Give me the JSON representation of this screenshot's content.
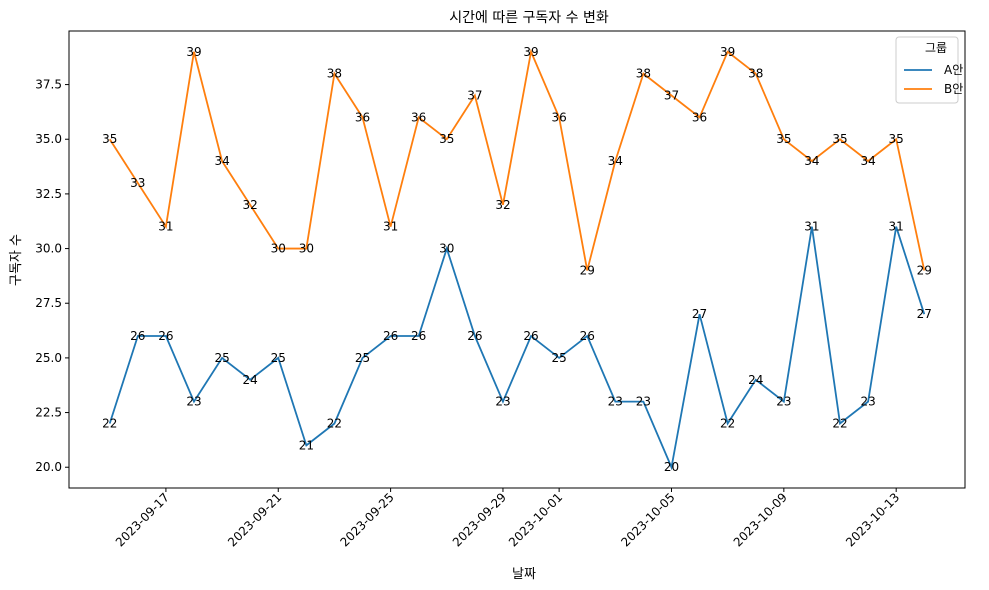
{
  "chart_data": {
    "type": "line",
    "title": "시간에 따른 구독자 수 변화",
    "xlabel": "날짜",
    "ylabel": "구독자 수",
    "x": [
      "2023-09-15",
      "2023-09-16",
      "2023-09-17",
      "2023-09-18",
      "2023-09-19",
      "2023-09-20",
      "2023-09-21",
      "2023-09-22",
      "2023-09-23",
      "2023-09-24",
      "2023-09-25",
      "2023-09-26",
      "2023-09-27",
      "2023-09-28",
      "2023-09-29",
      "2023-09-30",
      "2023-10-01",
      "2023-10-02",
      "2023-10-03",
      "2023-10-04",
      "2023-10-05",
      "2023-10-06",
      "2023-10-07",
      "2023-10-08",
      "2023-10-09",
      "2023-10-10",
      "2023-10-11",
      "2023-10-12",
      "2023-10-13",
      "2023-10-14"
    ],
    "xticks": [
      "2023-09-17",
      "2023-09-21",
      "2023-09-25",
      "2023-09-29",
      "2023-10-01",
      "2023-10-05",
      "2023-10-09",
      "2023-10-13"
    ],
    "yticks": [
      "20.0",
      "22.5",
      "25.0",
      "27.5",
      "30.0",
      "32.5",
      "35.0",
      "37.5"
    ],
    "ylim": [
      19.05,
      39.95
    ],
    "grid": false,
    "legend": {
      "title": "그룹",
      "placement": "top-right"
    },
    "series": [
      {
        "name": "A안",
        "color": "#1f77b4",
        "values": [
          22,
          26,
          26,
          23,
          25,
          24,
          25,
          21,
          22,
          25,
          26,
          26,
          30,
          26,
          23,
          26,
          25,
          26,
          23,
          23,
          20,
          27,
          22,
          24,
          23,
          31,
          22,
          23,
          31,
          27
        ]
      },
      {
        "name": "B안",
        "color": "#ff7f0e",
        "values": [
          35,
          33,
          31,
          39,
          34,
          32,
          30,
          30,
          38,
          36,
          31,
          36,
          35,
          37,
          32,
          39,
          36,
          29,
          34,
          38,
          37,
          36,
          39,
          38,
          35,
          34,
          35,
          34,
          35,
          29
        ]
      }
    ]
  }
}
